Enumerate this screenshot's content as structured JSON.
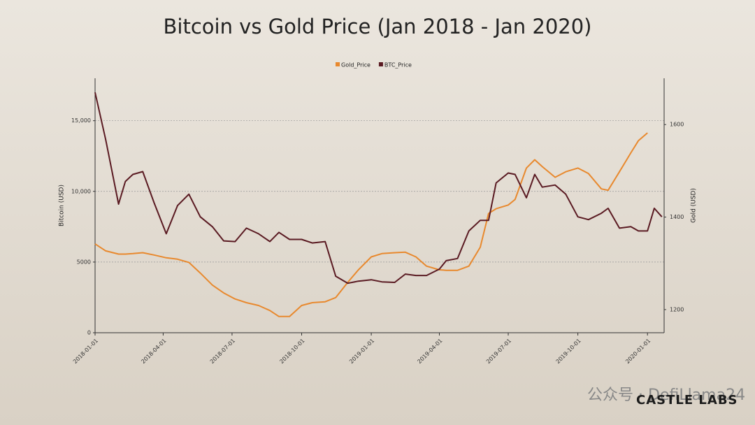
{
  "chart_data": {
    "type": "line",
    "title": "Bitcoin vs Gold Price (Jan 2018 - Jan 2020)",
    "y_label": "Bitcoin (USD)",
    "y2_label": "Gold (USD)",
    "x": [
      "2018-01-01",
      "2018-01-15",
      "2018-02-01",
      "2018-02-10",
      "2018-02-20",
      "2018-03-05",
      "2018-03-20",
      "2018-04-05",
      "2018-04-20",
      "2018-05-05",
      "2018-05-20",
      "2018-06-05",
      "2018-06-20",
      "2018-07-05",
      "2018-07-20",
      "2018-08-05",
      "2018-08-20",
      "2018-09-01",
      "2018-09-15",
      "2018-10-01",
      "2018-10-15",
      "2018-11-01",
      "2018-11-15",
      "2018-12-01",
      "2018-12-15",
      "2019-01-01",
      "2019-01-15",
      "2019-02-01",
      "2019-02-15",
      "2019-03-01",
      "2019-03-15",
      "2019-04-01",
      "2019-04-10",
      "2019-04-25",
      "2019-05-10",
      "2019-05-25",
      "2019-06-05",
      "2019-06-15",
      "2019-07-01",
      "2019-07-10",
      "2019-07-25",
      "2019-08-05",
      "2019-08-15",
      "2019-09-01",
      "2019-09-15",
      "2019-10-01",
      "2019-10-15",
      "2019-11-01",
      "2019-11-10",
      "2019-11-25",
      "2019-12-10",
      "2019-12-20",
      "2020-01-01",
      "2020-01-10",
      "2020-01-20"
    ],
    "series": [
      {
        "name": "Gold_Price",
        "color": "#e8892e",
        "axis": "y2",
        "values": [
          1342,
          1327,
          1320,
          1320,
          1321,
          1323,
          1318,
          1312,
          1309,
          1302,
          1279,
          1253,
          1236,
          1223,
          1215,
          1209,
          1198,
          1185,
          1185,
          1209,
          1215,
          1217,
          1226,
          1259,
          1286,
          1314,
          1321,
          1323,
          1324,
          1314,
          1294,
          1286,
          1285,
          1285,
          1294,
          1335,
          1408,
          1418,
          1426,
          1438,
          1506,
          1524,
          1509,
          1486,
          1498,
          1506,
          1494,
          1461,
          1458,
          1498,
          1539,
          1565,
          1582,
          null,
          null
        ]
      },
      {
        "name": "BTC_Price",
        "color": "#5a1a22",
        "values": [
          17000,
          13660,
          9100,
          10700,
          11200,
          11400,
          9200,
          7000,
          9000,
          9800,
          8200,
          7500,
          6500,
          6450,
          7400,
          7000,
          6450,
          7100,
          6600,
          6600,
          6350,
          6450,
          4000,
          3500,
          3650,
          3750,
          3600,
          3560,
          4150,
          4050,
          4050,
          4500,
          5100,
          5250,
          7200,
          7950,
          7950,
          10600,
          11300,
          11200,
          9550,
          11200,
          10300,
          10450,
          9800,
          8200,
          8000,
          8450,
          8800,
          7400,
          7500,
          7200,
          7200,
          8800,
          8200
        ]
      }
    ],
    "xlim": [
      "2018-01-01",
      "2020-01-23"
    ],
    "xticks": [
      "2018-01-01",
      "2018-04-01",
      "2018-07-01",
      "2018-10-01",
      "2019-01-01",
      "2019-04-01",
      "2019-07-01",
      "2019-10-01",
      "2020-01-01"
    ],
    "ylim": [
      0,
      18000
    ],
    "yticks": [
      0,
      5000,
      {
        "value": 10000,
        "label": "10,000"
      },
      {
        "value": 15000,
        "label": "15,000"
      }
    ],
    "y2lim": [
      1150,
      1700
    ],
    "y2ticks": [
      1200,
      1400,
      1600
    ],
    "grid": true,
    "legend": "top"
  },
  "watermark": "公众号 · DefiLlama24",
  "brand": "CASTLE LABS"
}
